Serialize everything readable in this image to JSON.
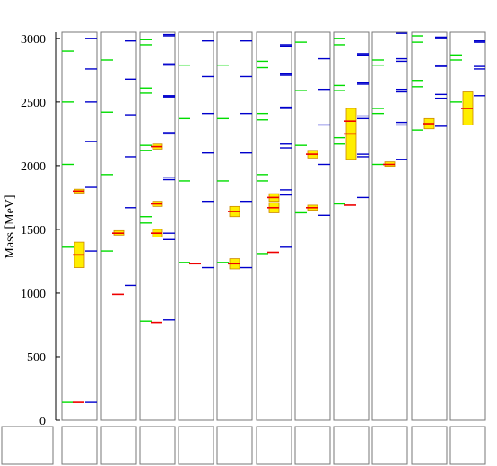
{
  "chart_data": {
    "type": "mass-spectrum",
    "ylabel": "Mass [MeV]",
    "ylim": [
      0,
      3050
    ],
    "yticks": [
      0,
      500,
      1000,
      1500,
      2000,
      2500,
      3000
    ],
    "colors": {
      "model_a": "#00dd00",
      "model_b": "#0000cc",
      "experiment": "#ee0000",
      "uncertainty_fill": "#ffee00",
      "uncertainty_edge": "#cc8800",
      "frame": "#777777"
    },
    "columns": [
      {
        "green": [
          140,
          1360,
          2010,
          2500,
          2900
        ],
        "red": [
          140,
          1300,
          1800
        ],
        "boxes": [
          [
            1200,
            1400
          ],
          [
            1785,
            1815
          ]
        ],
        "blue": [
          140,
          1330,
          1830,
          2190,
          2500,
          2760,
          3000
        ]
      },
      {
        "green": [
          1330,
          1930,
          2420,
          2830
        ],
        "red": [
          990,
          1470
        ],
        "boxes": [
          [
            1455,
            1490
          ]
        ],
        "blue": [
          1060,
          1670,
          2070,
          2400,
          2680,
          2980
        ]
      },
      {
        "green": [
          780,
          1550,
          1600,
          2120,
          2160,
          2570,
          2610,
          2950,
          2990
        ],
        "red": [
          770,
          1470,
          1700,
          2150
        ],
        "boxes": [
          [
            1440,
            1500
          ],
          [
            1680,
            1720
          ],
          [
            2130,
            2170
          ]
        ],
        "blue": [
          790,
          1420,
          1470,
          1890,
          1910,
          2250,
          2260,
          2540,
          2550,
          2790,
          2800,
          3020,
          3030
        ]
      },
      {
        "green": [
          1240,
          1880,
          2370,
          2790
        ],
        "red": [
          1230
        ],
        "boxes": [],
        "blue": [
          1200,
          1720,
          2100,
          2410,
          2700,
          2980
        ]
      },
      {
        "green": [
          1240,
          1880,
          2370,
          2790
        ],
        "red": [
          1230,
          1640
        ],
        "boxes": [
          [
            1190,
            1270
          ],
          [
            1600,
            1680
          ]
        ],
        "blue": [
          1200,
          1720,
          2100,
          2410,
          2700,
          2980
        ]
      },
      {
        "green": [
          1310,
          1880,
          1930,
          2360,
          2410,
          2770,
          2820
        ],
        "red": [
          1320,
          1670,
          1750
        ],
        "boxes": [
          [
            1630,
            1710
          ],
          [
            1720,
            1780
          ]
        ],
        "blue": [
          1360,
          1770,
          1810,
          2140,
          2170,
          2450,
          2460,
          2710,
          2720,
          2940,
          2950
        ]
      },
      {
        "green": [
          1630,
          2160,
          2590,
          2970
        ],
        "red": [
          1670,
          2090
        ],
        "boxes": [
          [
            1650,
            1690
          ],
          [
            2060,
            2120
          ]
        ],
        "blue": [
          1610,
          2010,
          2320,
          2600,
          2840
        ]
      },
      {
        "green": [
          1700,
          2170,
          2220,
          2590,
          2630,
          2950,
          3000
        ],
        "red": [
          1690,
          2250,
          2350
        ],
        "boxes": [
          [
            2050,
            2450
          ]
        ],
        "blue": [
          1750,
          2070,
          2090,
          2370,
          2390,
          2640,
          2650,
          2870,
          2880
        ]
      },
      {
        "green": [
          2010,
          2410,
          2450,
          2790,
          2830
        ],
        "red": [
          2010
        ],
        "boxes": [
          [
            1995,
            2030
          ]
        ],
        "blue": [
          2050,
          2320,
          2340,
          2580,
          2600,
          2820,
          2840,
          3040
        ]
      },
      {
        "green": [
          2280,
          2620,
          2670,
          2970,
          3020
        ],
        "red": [
          2330
        ],
        "boxes": [
          [
            2290,
            2370
          ]
        ],
        "blue": [
          2310,
          2530,
          2560,
          2780,
          2790,
          3000,
          3010
        ]
      },
      {
        "green": [
          2500,
          2830,
          2870
        ],
        "red": [
          2450
        ],
        "boxes": [
          [
            2320,
            2580
          ]
        ],
        "blue": [
          2550,
          2760,
          2780,
          2970,
          2980
        ]
      }
    ]
  }
}
